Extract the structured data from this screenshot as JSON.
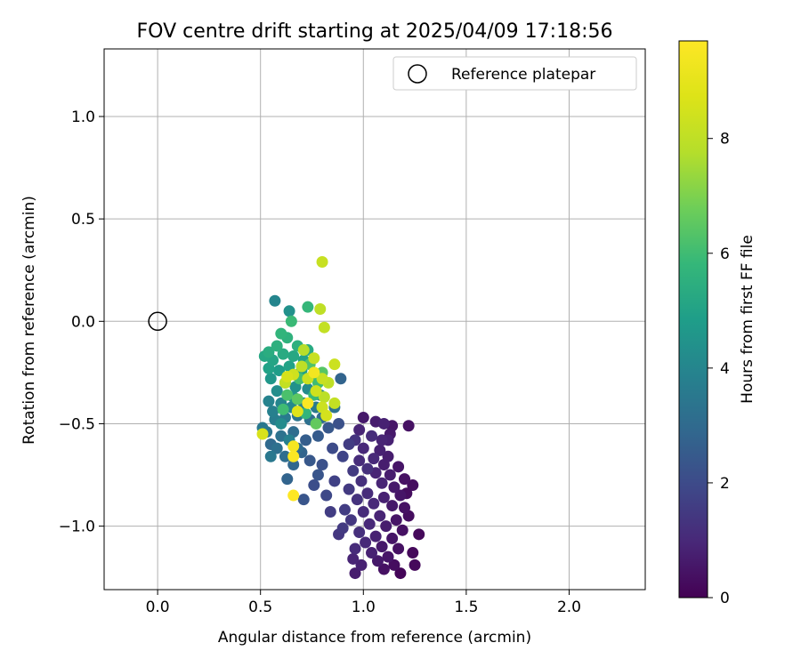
{
  "chart_data": {
    "type": "scatter",
    "title": "FOV centre drift starting at 2025/04/09 17:18:56",
    "xlabel": "Angular distance from reference (arcmin)",
    "ylabel": "Rotation from reference (arcmin)",
    "xlim": [
      -0.26,
      2.37
    ],
    "ylim": [
      -1.31,
      1.33
    ],
    "xticks": [
      0.0,
      0.5,
      1.0,
      1.5,
      2.0
    ],
    "xtick_labels": [
      "0.0",
      "0.5",
      "1.0",
      "1.5",
      "2.0"
    ],
    "yticks": [
      -1.0,
      -0.5,
      0.0,
      0.5,
      1.0
    ],
    "ytick_labels": [
      "−1.0",
      "−0.5",
      "0.0",
      "0.5",
      "1.0"
    ],
    "grid": true,
    "legend": {
      "position": "top-right",
      "label": "Reference platepar"
    },
    "reference_point": {
      "x": 0.0,
      "y": 0.0
    },
    "colorbar": {
      "label": "Hours from first FF file",
      "range": [
        0,
        9.7
      ],
      "ticks": [
        0,
        2,
        4,
        6,
        8
      ],
      "tick_labels": [
        "0",
        "2",
        "4",
        "6",
        "8"
      ],
      "colormap": "viridis"
    },
    "series": [
      {
        "color_by": "hours",
        "points": [
          {
            "x": 1.0,
            "y": -0.47,
            "h": 0.6
          },
          {
            "x": 1.06,
            "y": -0.49,
            "h": 0.7
          },
          {
            "x": 1.1,
            "y": -0.5,
            "h": 0.8
          },
          {
            "x": 1.14,
            "y": -0.51,
            "h": 0.5
          },
          {
            "x": 1.22,
            "y": -0.51,
            "h": 0.4
          },
          {
            "x": 0.98,
            "y": -0.53,
            "h": 0.9
          },
          {
            "x": 1.04,
            "y": -0.56,
            "h": 1.1
          },
          {
            "x": 1.09,
            "y": -0.58,
            "h": 0.9
          },
          {
            "x": 1.12,
            "y": -0.58,
            "h": 0.8
          },
          {
            "x": 0.96,
            "y": -0.58,
            "h": 1.3
          },
          {
            "x": 1.0,
            "y": -0.62,
            "h": 1.0
          },
          {
            "x": 1.08,
            "y": -0.63,
            "h": 0.8
          },
          {
            "x": 1.12,
            "y": -0.66,
            "h": 0.7
          },
          {
            "x": 1.05,
            "y": -0.67,
            "h": 1.0
          },
          {
            "x": 0.98,
            "y": -0.68,
            "h": 1.1
          },
          {
            "x": 1.1,
            "y": -0.7,
            "h": 0.7
          },
          {
            "x": 1.17,
            "y": -0.71,
            "h": 0.5
          },
          {
            "x": 1.02,
            "y": -0.72,
            "h": 1.2
          },
          {
            "x": 0.95,
            "y": -0.73,
            "h": 1.5
          },
          {
            "x": 1.06,
            "y": -0.74,
            "h": 0.9
          },
          {
            "x": 1.13,
            "y": -0.75,
            "h": 0.7
          },
          {
            "x": 1.2,
            "y": -0.77,
            "h": 0.4
          },
          {
            "x": 0.99,
            "y": -0.78,
            "h": 1.2
          },
          {
            "x": 1.09,
            "y": -0.79,
            "h": 0.9
          },
          {
            "x": 1.24,
            "y": -0.8,
            "h": 0.3
          },
          {
            "x": 1.15,
            "y": -0.81,
            "h": 0.6
          },
          {
            "x": 0.93,
            "y": -0.82,
            "h": 1.5
          },
          {
            "x": 1.02,
            "y": -0.84,
            "h": 1.1
          },
          {
            "x": 1.18,
            "y": -0.85,
            "h": 0.5
          },
          {
            "x": 1.1,
            "y": -0.86,
            "h": 0.8
          },
          {
            "x": 0.97,
            "y": -0.87,
            "h": 1.3
          },
          {
            "x": 1.05,
            "y": -0.89,
            "h": 1.0
          },
          {
            "x": 1.14,
            "y": -0.9,
            "h": 0.6
          },
          {
            "x": 1.2,
            "y": -0.91,
            "h": 0.4
          },
          {
            "x": 0.91,
            "y": -0.92,
            "h": 1.6
          },
          {
            "x": 1.0,
            "y": -0.93,
            "h": 1.1
          },
          {
            "x": 1.08,
            "y": -0.95,
            "h": 0.9
          },
          {
            "x": 1.22,
            "y": -0.95,
            "h": 0.3
          },
          {
            "x": 0.94,
            "y": -0.97,
            "h": 1.4
          },
          {
            "x": 1.16,
            "y": -0.97,
            "h": 0.5
          },
          {
            "x": 1.03,
            "y": -0.99,
            "h": 1.0
          },
          {
            "x": 1.11,
            "y": -1.0,
            "h": 0.7
          },
          {
            "x": 0.9,
            "y": -1.01,
            "h": 1.5
          },
          {
            "x": 1.19,
            "y": -1.02,
            "h": 0.4
          },
          {
            "x": 0.98,
            "y": -1.03,
            "h": 1.2
          },
          {
            "x": 1.06,
            "y": -1.05,
            "h": 0.8
          },
          {
            "x": 1.14,
            "y": -1.06,
            "h": 0.5
          },
          {
            "x": 1.27,
            "y": -1.04,
            "h": 0.2
          },
          {
            "x": 1.01,
            "y": -1.08,
            "h": 1.0
          },
          {
            "x": 1.09,
            "y": -1.1,
            "h": 0.6
          },
          {
            "x": 0.96,
            "y": -1.11,
            "h": 1.1
          },
          {
            "x": 1.17,
            "y": -1.11,
            "h": 0.4
          },
          {
            "x": 1.04,
            "y": -1.13,
            "h": 0.8
          },
          {
            "x": 1.12,
            "y": -1.15,
            "h": 0.5
          },
          {
            "x": 1.24,
            "y": -1.13,
            "h": 0.2
          },
          {
            "x": 0.95,
            "y": -1.16,
            "h": 0.9
          },
          {
            "x": 1.07,
            "y": -1.17,
            "h": 0.6
          },
          {
            "x": 1.15,
            "y": -1.19,
            "h": 0.3
          },
          {
            "x": 0.99,
            "y": -1.19,
            "h": 0.8
          },
          {
            "x": 1.1,
            "y": -1.21,
            "h": 0.4
          },
          {
            "x": 0.96,
            "y": -1.23,
            "h": 0.7
          },
          {
            "x": 1.18,
            "y": -1.23,
            "h": 0.1
          },
          {
            "x": 1.25,
            "y": -1.19,
            "h": 0.2
          },
          {
            "x": 1.21,
            "y": -0.84,
            "h": 0.3
          },
          {
            "x": 1.13,
            "y": -0.55,
            "h": 0.6
          },
          {
            "x": 0.84,
            "y": -0.93,
            "h": 1.6
          },
          {
            "x": 0.88,
            "y": -1.04,
            "h": 1.4
          },
          {
            "x": 0.86,
            "y": -0.78,
            "h": 1.7
          },
          {
            "x": 0.9,
            "y": -0.66,
            "h": 1.8
          },
          {
            "x": 0.93,
            "y": -0.6,
            "h": 1.6
          },
          {
            "x": 0.85,
            "y": -0.62,
            "h": 2.0
          },
          {
            "x": 0.8,
            "y": -0.7,
            "h": 2.2
          },
          {
            "x": 0.76,
            "y": -0.8,
            "h": 2.1
          },
          {
            "x": 0.82,
            "y": -0.85,
            "h": 1.9
          },
          {
            "x": 0.78,
            "y": -0.75,
            "h": 2.3
          },
          {
            "x": 0.74,
            "y": -0.68,
            "h": 2.4
          },
          {
            "x": 0.72,
            "y": -0.58,
            "h": 2.6
          },
          {
            "x": 0.78,
            "y": -0.56,
            "h": 2.5
          },
          {
            "x": 0.83,
            "y": -0.52,
            "h": 2.4
          },
          {
            "x": 0.88,
            "y": -0.5,
            "h": 2.2
          },
          {
            "x": 0.7,
            "y": -0.64,
            "h": 2.8
          },
          {
            "x": 0.66,
            "y": -0.7,
            "h": 2.9
          },
          {
            "x": 0.63,
            "y": -0.77,
            "h": 2.8
          },
          {
            "x": 0.71,
            "y": -0.87,
            "h": 2.3
          },
          {
            "x": 0.68,
            "y": -0.62,
            "h": 3.0
          },
          {
            "x": 0.62,
            "y": -0.66,
            "h": 3.1
          },
          {
            "x": 0.58,
            "y": -0.62,
            "h": 3.2
          },
          {
            "x": 0.55,
            "y": -0.6,
            "h": 3.0
          },
          {
            "x": 0.6,
            "y": -0.56,
            "h": 3.3
          },
          {
            "x": 0.66,
            "y": -0.54,
            "h": 3.1
          },
          {
            "x": 0.53,
            "y": -0.54,
            "h": 3.4
          },
          {
            "x": 0.51,
            "y": -0.52,
            "h": 3.5
          },
          {
            "x": 0.57,
            "y": -0.48,
            "h": 3.7
          },
          {
            "x": 0.62,
            "y": -0.47,
            "h": 3.6
          },
          {
            "x": 0.68,
            "y": -0.46,
            "h": 3.4
          },
          {
            "x": 0.74,
            "y": -0.48,
            "h": 3.2
          },
          {
            "x": 0.8,
            "y": -0.47,
            "h": 3.1
          },
          {
            "x": 0.86,
            "y": -0.42,
            "h": 3.3
          },
          {
            "x": 0.89,
            "y": -0.28,
            "h": 2.8
          },
          {
            "x": 0.54,
            "y": -0.39,
            "h": 3.9
          },
          {
            "x": 0.56,
            "y": -0.44,
            "h": 3.8
          },
          {
            "x": 0.6,
            "y": -0.4,
            "h": 4.0
          },
          {
            "x": 0.65,
            "y": -0.42,
            "h": 4.1
          },
          {
            "x": 0.71,
            "y": -0.4,
            "h": 3.9
          },
          {
            "x": 0.77,
            "y": -0.42,
            "h": 3.6
          },
          {
            "x": 0.58,
            "y": -0.34,
            "h": 4.3
          },
          {
            "x": 0.62,
            "y": -0.3,
            "h": 4.5
          },
          {
            "x": 0.67,
            "y": -0.32,
            "h": 4.4
          },
          {
            "x": 0.73,
            "y": -0.33,
            "h": 4.2
          },
          {
            "x": 0.79,
            "y": -0.36,
            "h": 4.0
          },
          {
            "x": 0.55,
            "y": -0.28,
            "h": 4.6
          },
          {
            "x": 0.59,
            "y": -0.24,
            "h": 4.8
          },
          {
            "x": 0.64,
            "y": -0.22,
            "h": 5.0
          },
          {
            "x": 0.7,
            "y": -0.24,
            "h": 4.9
          },
          {
            "x": 0.75,
            "y": -0.27,
            "h": 4.7
          },
          {
            "x": 0.56,
            "y": -0.19,
            "h": 5.1
          },
          {
            "x": 0.61,
            "y": -0.16,
            "h": 5.3
          },
          {
            "x": 0.66,
            "y": -0.17,
            "h": 5.2
          },
          {
            "x": 0.71,
            "y": -0.19,
            "h": 5.0
          },
          {
            "x": 0.54,
            "y": -0.15,
            "h": 5.4
          },
          {
            "x": 0.58,
            "y": -0.12,
            "h": 5.5
          },
          {
            "x": 0.63,
            "y": -0.08,
            "h": 5.6
          },
          {
            "x": 0.68,
            "y": -0.12,
            "h": 5.5
          },
          {
            "x": 0.73,
            "y": -0.14,
            "h": 5.3
          },
          {
            "x": 0.6,
            "y": -0.06,
            "h": 5.7
          },
          {
            "x": 0.57,
            "y": 0.1,
            "h": 4.0
          },
          {
            "x": 0.64,
            "y": 0.05,
            "h": 4.4
          },
          {
            "x": 0.73,
            "y": 0.07,
            "h": 5.8
          },
          {
            "x": 0.65,
            "y": 0.0,
            "h": 5.9
          },
          {
            "x": 0.52,
            "y": -0.17,
            "h": 5.2
          },
          {
            "x": 0.54,
            "y": -0.23,
            "h": 5.0
          },
          {
            "x": 0.66,
            "y": -0.37,
            "h": 4.5
          },
          {
            "x": 0.6,
            "y": -0.5,
            "h": 4.2
          },
          {
            "x": 0.64,
            "y": -0.58,
            "h": 3.8
          },
          {
            "x": 0.55,
            "y": -0.66,
            "h": 3.5
          },
          {
            "x": 0.69,
            "y": -0.28,
            "h": 6.1
          },
          {
            "x": 0.74,
            "y": -0.21,
            "h": 6.3
          },
          {
            "x": 0.78,
            "y": -0.3,
            "h": 6.0
          },
          {
            "x": 0.8,
            "y": -0.25,
            "h": 6.4
          },
          {
            "x": 0.76,
            "y": -0.36,
            "h": 5.9
          },
          {
            "x": 0.72,
            "y": -0.45,
            "h": 5.7
          },
          {
            "x": 0.63,
            "y": -0.36,
            "h": 6.2
          },
          {
            "x": 0.77,
            "y": -0.5,
            "h": 6.6
          },
          {
            "x": 0.61,
            "y": -0.43,
            "h": 6.0
          },
          {
            "x": 0.68,
            "y": -0.38,
            "h": 6.5
          },
          {
            "x": 0.8,
            "y": 0.29,
            "h": 8.2
          },
          {
            "x": 0.79,
            "y": 0.06,
            "h": 8.0
          },
          {
            "x": 0.81,
            "y": -0.03,
            "h": 8.1
          },
          {
            "x": 0.86,
            "y": -0.21,
            "h": 8.3
          },
          {
            "x": 0.76,
            "y": -0.18,
            "h": 8.2
          },
          {
            "x": 0.71,
            "y": -0.14,
            "h": 7.8
          },
          {
            "x": 0.7,
            "y": -0.22,
            "h": 8.0
          },
          {
            "x": 0.66,
            "y": -0.26,
            "h": 8.4
          },
          {
            "x": 0.63,
            "y": -0.27,
            "h": 8.6
          },
          {
            "x": 0.62,
            "y": -0.3,
            "h": 8.1
          },
          {
            "x": 0.73,
            "y": -0.28,
            "h": 8.3
          },
          {
            "x": 0.8,
            "y": -0.28,
            "h": 8.2
          },
          {
            "x": 0.83,
            "y": -0.3,
            "h": 8.0
          },
          {
            "x": 0.77,
            "y": -0.34,
            "h": 8.4
          },
          {
            "x": 0.81,
            "y": -0.37,
            "h": 7.9
          },
          {
            "x": 0.86,
            "y": -0.4,
            "h": 8.1
          },
          {
            "x": 0.8,
            "y": -0.42,
            "h": 8.3
          },
          {
            "x": 0.82,
            "y": -0.46,
            "h": 8.5
          },
          {
            "x": 0.68,
            "y": -0.44,
            "h": 8.8
          },
          {
            "x": 0.51,
            "y": -0.55,
            "h": 8.6
          },
          {
            "x": 0.76,
            "y": -0.25,
            "h": 9.4
          },
          {
            "x": 0.73,
            "y": -0.4,
            "h": 9.6
          },
          {
            "x": 0.66,
            "y": -0.61,
            "h": 9.5
          },
          {
            "x": 0.66,
            "y": -0.66,
            "h": 9.6
          },
          {
            "x": 0.66,
            "y": -0.85,
            "h": 9.7
          }
        ]
      }
    ]
  }
}
